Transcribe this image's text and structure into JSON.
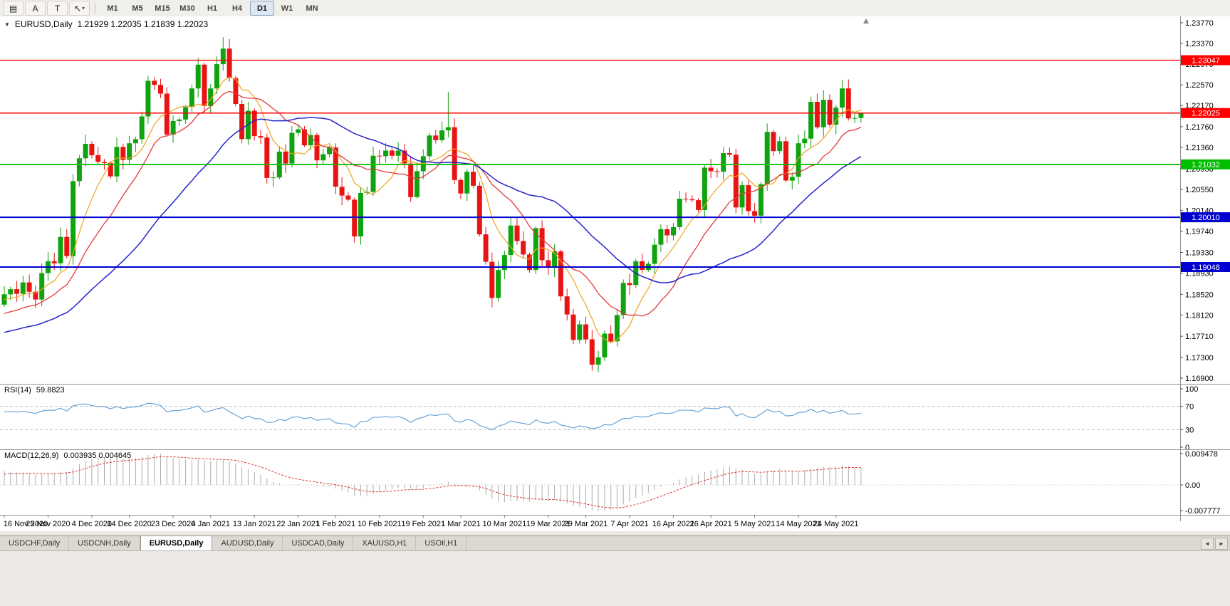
{
  "window": {
    "bg": "#ECE9E4",
    "panel_bg": "#FFFFFF"
  },
  "toolbar": {
    "tools": [
      {
        "name": "chart-list",
        "glyph": "▤"
      },
      {
        "name": "cursor-tool",
        "glyph": "A"
      },
      {
        "name": "text-tool",
        "glyph": "T"
      },
      {
        "name": "crosshair-tool",
        "glyph": "↖",
        "caret": "▾"
      }
    ],
    "timeframes": [
      "M1",
      "M5",
      "M15",
      "M30",
      "H1",
      "H4",
      "D1",
      "W1",
      "MN"
    ],
    "active_timeframe": "D1"
  },
  "chart": {
    "marker": "▼",
    "title": "EURUSD,Daily",
    "ohlc_text": "1.21929 1.22035 1.21839 1.22023"
  },
  "rsi_panel": {
    "label": "RSI(14)",
    "value": "59.8823",
    "axis_labels": [
      "100",
      "70",
      "30",
      "0"
    ],
    "levels": [
      70,
      30
    ],
    "period": 14,
    "seed_gain": 0.0029,
    "seed_loss": 0.0019,
    "line_color": "#5E9BD3"
  },
  "macd_panel": {
    "label": "MACD(12,26,9)",
    "value": "0.003935 0.004645",
    "axis_labels": [
      "0.009478",
      "0.00",
      "-0.007777"
    ],
    "axis_max": 0.009478,
    "axis_min": -0.007777,
    "fast": 12,
    "slow": 26,
    "signal": 9,
    "ema_fast_seed": 1.1845,
    "ema_slow_seed": 1.18,
    "signal_seed": 0.003,
    "hist_color": "#ADADAD",
    "signal_color": "#E03535"
  },
  "chart_data": {
    "type": "candlestick",
    "symbol": "EURUSD",
    "period": "Daily",
    "up_color": "#0FA30F",
    "down_color": "#E81414",
    "price_max": 1.2377,
    "price_min": 1.169,
    "price_ticks": [
      "1.23770",
      "1.23370",
      "1.22970",
      "1.22570",
      "1.22170",
      "1.21760",
      "1.21360",
      "1.20950",
      "1.20550",
      "1.20140",
      "1.19740",
      "1.19330",
      "1.18930",
      "1.18520",
      "1.18120",
      "1.17710",
      "1.17300",
      "1.16900"
    ],
    "hlines": [
      {
        "value": 1.23047,
        "label": "1.23047",
        "color": "#FF0000",
        "width": 1.4
      },
      {
        "value": 1.22025,
        "label": "1.22025",
        "color": "#FF0000",
        "width": 1.4
      },
      {
        "value": 1.21032,
        "label": "1.21032",
        "color": "#00BE00",
        "width": 1.8
      },
      {
        "value": 1.2001,
        "label": "1.20010",
        "color": "#0000D0",
        "width": 2
      },
      {
        "value": 1.19048,
        "label": "1.19048",
        "color": "#0000D0",
        "width": 2
      }
    ],
    "x_ticks": [
      {
        "label": "16 Nov 2020",
        "index": 0
      },
      {
        "label": "25 Nov 2020",
        "index": 7
      },
      {
        "label": "4 Dec 2020",
        "index": 14
      },
      {
        "label": "14 Dec 2020",
        "index": 20
      },
      {
        "label": "23 Dec 2020",
        "index": 27
      },
      {
        "label": "4 Jan 2021",
        "index": 33
      },
      {
        "label": "13 Jan 2021",
        "index": 40
      },
      {
        "label": "22 Jan 2021",
        "index": 47
      },
      {
        "label": "1 Feb 2021",
        "index": 53
      },
      {
        "label": "10 Feb 2021",
        "index": 60
      },
      {
        "label": "19 Feb 2021",
        "index": 67
      },
      {
        "label": "1 Mar 2021",
        "index": 73
      },
      {
        "label": "10 Mar 2021",
        "index": 80
      },
      {
        "label": "19 Mar 2021",
        "index": 87
      },
      {
        "label": "29 Mar 2021",
        "index": 93
      },
      {
        "label": "7 Apr 2021",
        "index": 100
      },
      {
        "label": "16 Apr 2021",
        "index": 107
      },
      {
        "label": "26 Apr 2021",
        "index": 113
      },
      {
        "label": "5 May 2021",
        "index": 120
      },
      {
        "label": "14 May 2021",
        "index": 127
      },
      {
        "label": "24 May 2021",
        "index": 133
      }
    ],
    "first_open": 1.1832,
    "closes": [
      1.1852,
      1.1862,
      1.1853,
      1.1875,
      1.1857,
      1.1842,
      1.1893,
      1.1916,
      1.1912,
      1.1963,
      1.1926,
      1.2071,
      1.2115,
      1.2143,
      1.2121,
      1.2108,
      1.2106,
      1.208,
      1.2137,
      1.2112,
      1.2144,
      1.2152,
      1.2196,
      1.2265,
      1.2257,
      1.224,
      1.2161,
      1.2187,
      1.219,
      1.2214,
      1.225,
      1.2296,
      1.2216,
      1.225,
      1.2297,
      1.2327,
      1.227,
      1.222,
      1.2152,
      1.2207,
      1.2158,
      1.2155,
      1.2077,
      1.2078,
      1.2128,
      1.2105,
      1.2164,
      1.2171,
      1.214,
      1.216,
      1.2111,
      1.2123,
      1.2136,
      1.206,
      1.2043,
      1.2035,
      1.1964,
      1.2048,
      1.205,
      1.212,
      1.2119,
      1.213,
      1.212,
      1.213,
      1.2105,
      1.204,
      1.209,
      1.2119,
      1.2159,
      1.215,
      1.2169,
      1.2175,
      1.2073,
      1.2047,
      1.2089,
      1.2062,
      1.1968,
      1.1915,
      1.1845,
      1.1899,
      1.1928,
      1.1985,
      1.1955,
      1.1929,
      1.1899,
      1.198,
      1.1918,
      1.1904,
      1.1935,
      1.1848,
      1.1813,
      1.1764,
      1.1794,
      1.1765,
      1.1716,
      1.173,
      1.1776,
      1.1761,
      1.1812,
      1.1874,
      1.187,
      1.1916,
      1.1899,
      1.1911,
      1.1948,
      1.1978,
      1.1966,
      1.1982,
      1.2037,
      1.2036,
      1.2034,
      1.2015,
      1.2097,
      1.209,
      1.2089,
      1.2125,
      1.2122,
      1.202,
      1.2063,
      1.2013,
      1.2004,
      1.2065,
      1.2166,
      1.2129,
      1.2148,
      1.2072,
      1.2079,
      1.2144,
      1.2153,
      1.2224,
      1.2175,
      1.2228,
      1.218,
      1.2213,
      1.225,
      1.2192,
      1.21929,
      1.22023
    ],
    "wick_overrides": {
      "23": {
        "h": 1.2274
      },
      "35": {
        "h": 1.2349
      },
      "56": {
        "l": 1.1952
      },
      "71": {
        "h": 1.2243
      },
      "94": {
        "l": 1.1704
      },
      "134": {
        "h": 1.2266
      },
      "137": {
        "h": 1.22035,
        "l": 1.21839
      }
    },
    "moving_averages": [
      {
        "name": "fast",
        "type": "sma",
        "period": 7,
        "seed": 1.184,
        "color": "#F0A31B",
        "width": 1.2
      },
      {
        "name": "mid",
        "type": "sma",
        "period": 14,
        "seed": 1.1812,
        "color": "#E23A3A",
        "width": 1.3
      },
      {
        "name": "slow",
        "type": "sma",
        "period": 30,
        "seed": 1.1776,
        "color": "#2424CC",
        "width": 1.5
      }
    ]
  },
  "tabbar": {
    "tabs": [
      "USDCHF,Daily",
      "USDCNH,Daily",
      "EURUSD,Daily",
      "AUDUSD,Daily",
      "USDCAD,Daily",
      "XAUUSD,H1",
      "USOil,H1"
    ],
    "active_tab": "EURUSD,Daily",
    "scroll_left": "◄",
    "scroll_right": "►"
  }
}
